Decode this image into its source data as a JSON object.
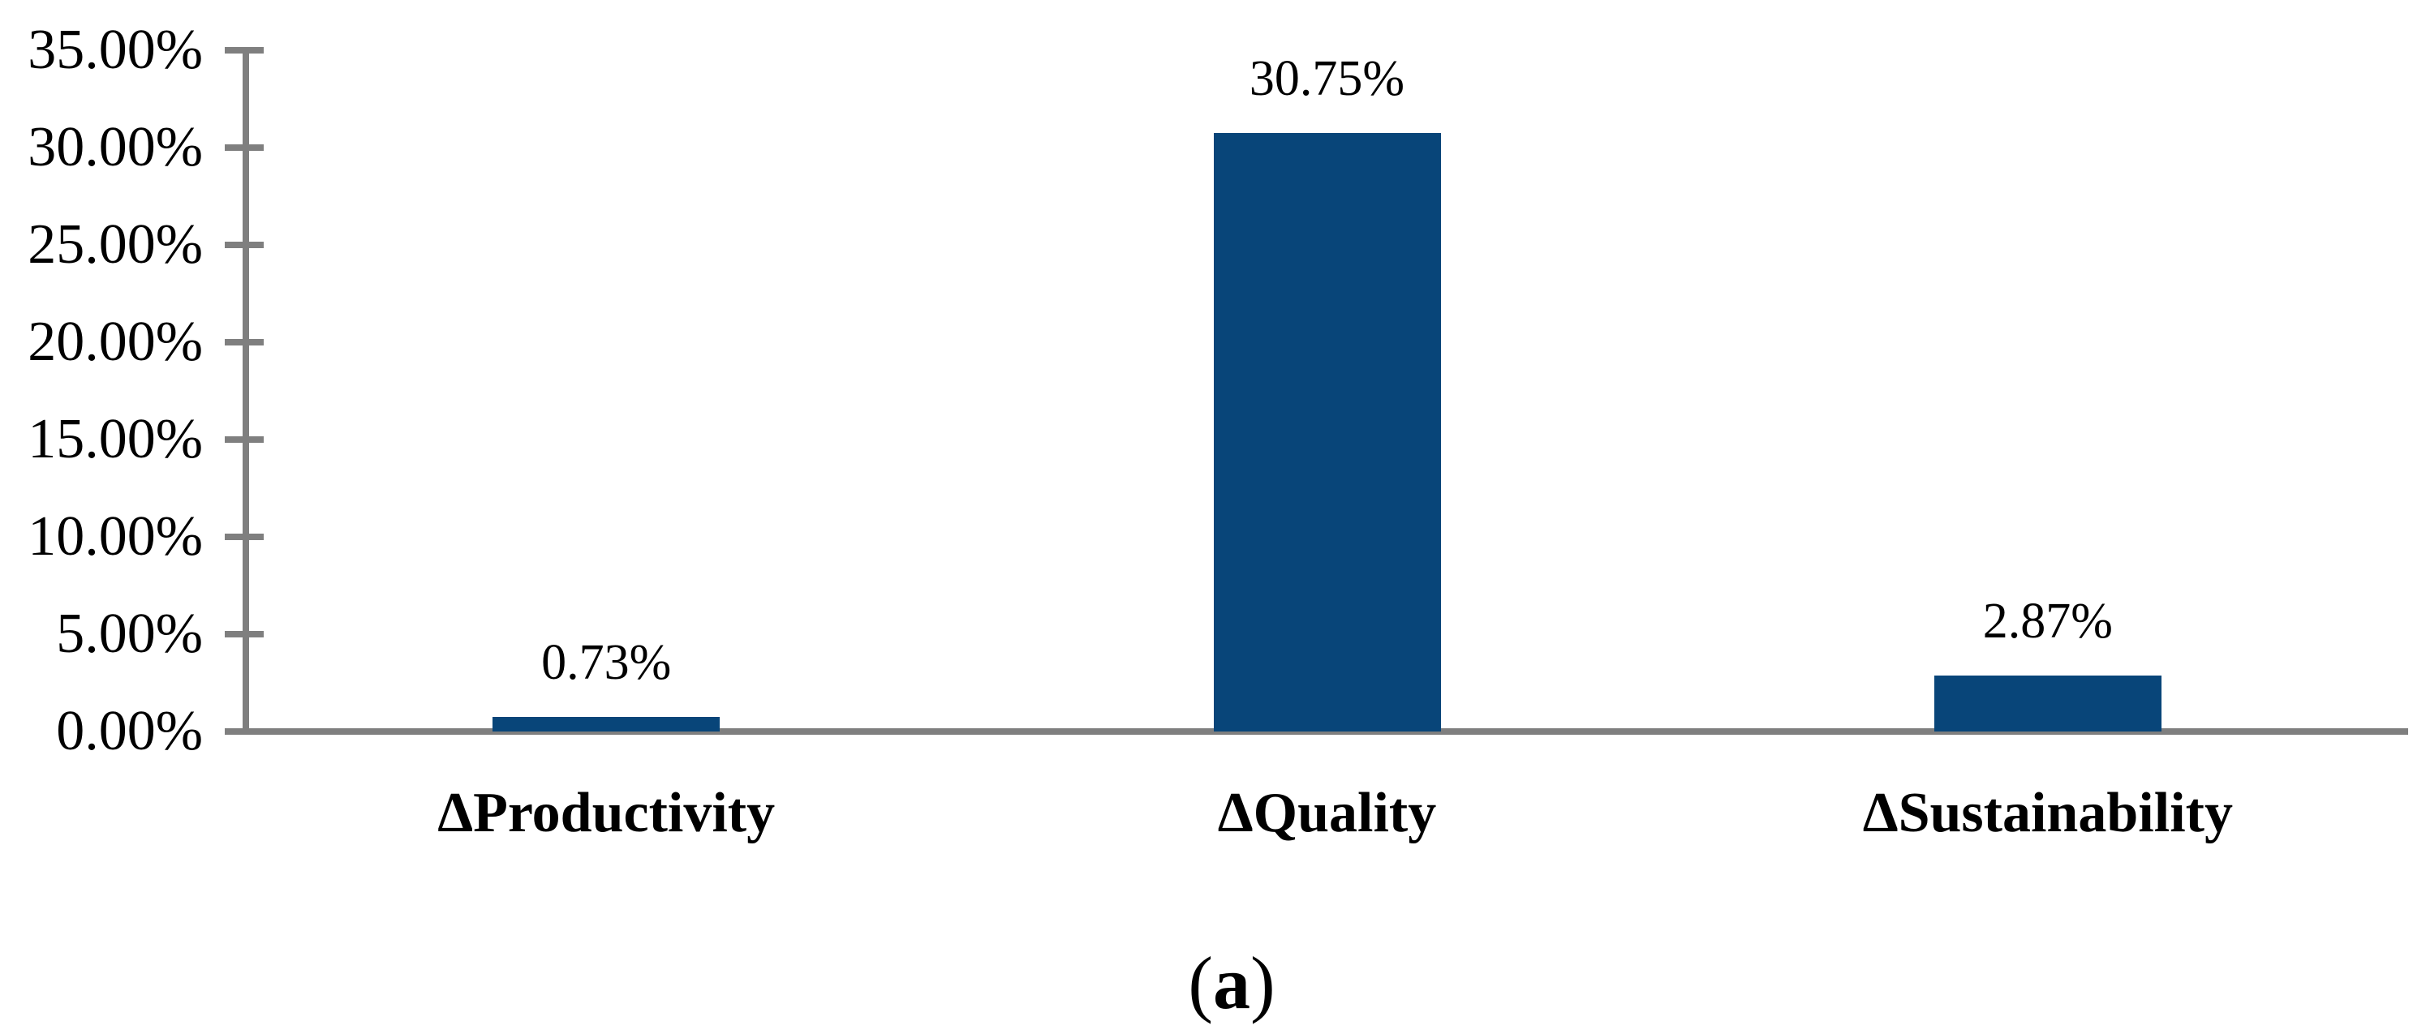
{
  "chart_data": {
    "type": "bar",
    "title": "",
    "xlabel": "",
    "ylabel": "",
    "categories": [
      "ΔProductivity",
      "ΔQuality",
      "ΔSustainability"
    ],
    "values": [
      0.73,
      30.75,
      2.87
    ],
    "data_labels": [
      "0.73%",
      "30.75%",
      "2.87%"
    ],
    "ylim": [
      0,
      35
    ],
    "ytick_step": 5,
    "ytick_labels": [
      "0.00%",
      "5.00%",
      "10.00%",
      "15.00%",
      "20.00%",
      "25.00%",
      "30.00%",
      "35.00%"
    ],
    "grid": false,
    "legend_position": "none",
    "bar_color": "#084579",
    "axis_color": "#7F7F7F",
    "text_color": "#000000"
  },
  "caption": {
    "open": "(",
    "letter": "a",
    "close": ")"
  }
}
